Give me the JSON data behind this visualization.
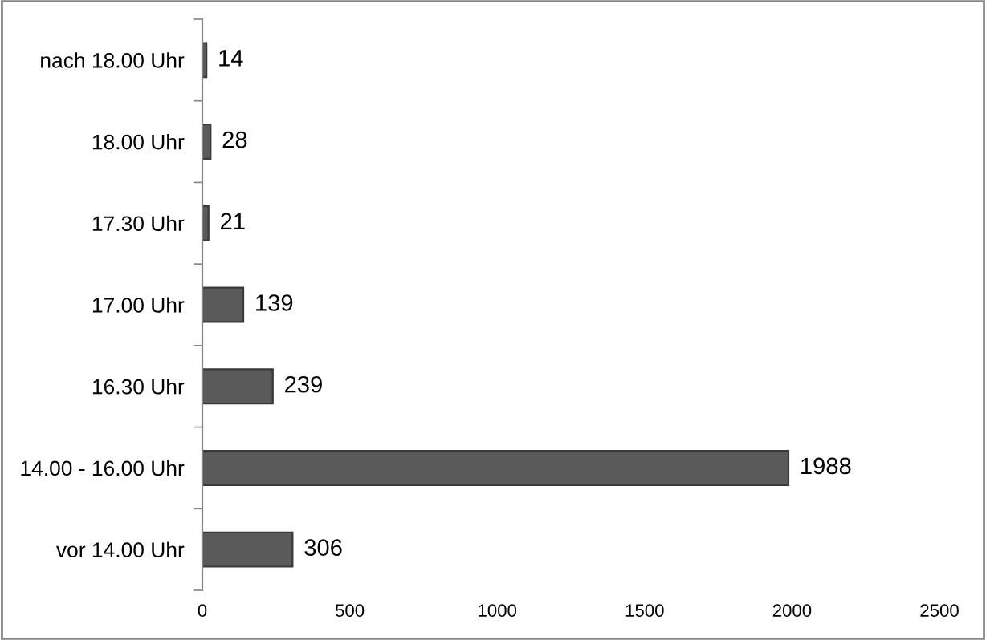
{
  "chart_data": {
    "type": "bar",
    "orientation": "horizontal",
    "categories": [
      "nach 18.00 Uhr",
      "18.00 Uhr",
      "17.30 Uhr",
      "17.00 Uhr",
      "16.30 Uhr",
      "14.00 - 16.00 Uhr",
      "vor 14.00 Uhr"
    ],
    "values": [
      14,
      28,
      21,
      139,
      239,
      1988,
      306
    ],
    "color": "#5a5a5a",
    "xlim": [
      0,
      2500
    ],
    "xticks": [
      0,
      500,
      1000,
      1500,
      2000,
      2500
    ],
    "grid": false,
    "data_labels": true
  }
}
